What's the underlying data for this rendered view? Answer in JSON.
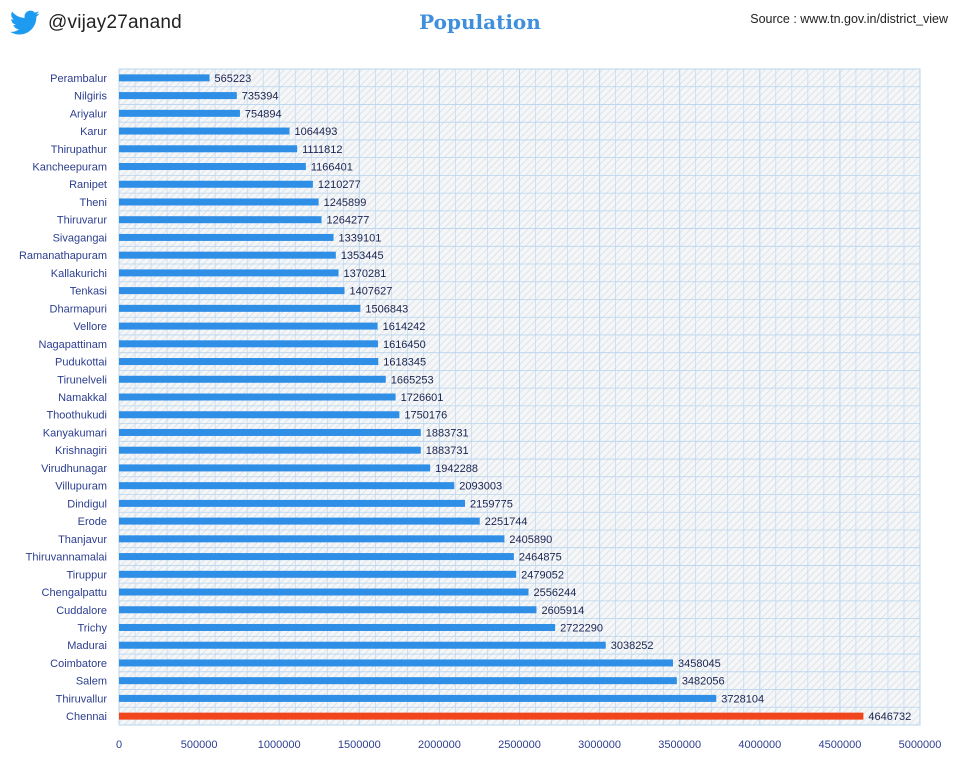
{
  "header": {
    "handle": "@vijay27anand",
    "title": "Population",
    "source": "Source : www.tn.gov.in/district_view"
  },
  "icons": {
    "brand": "twitter-bird-icon"
  },
  "colors": {
    "bar": "#2f8ee6",
    "highlight": "#f0451d",
    "title": "#3f8fdd",
    "grid": "#b9d4ee"
  },
  "chart_data": {
    "type": "bar",
    "orientation": "horizontal",
    "title": "Population",
    "xlabel": "",
    "ylabel": "",
    "xlim": [
      0,
      5000000
    ],
    "xticks": [
      0,
      500000,
      1000000,
      1500000,
      2000000,
      2500000,
      3000000,
      3500000,
      4000000,
      4500000,
      5000000
    ],
    "grid": true,
    "legend": "none",
    "highlight_category": "Chennai",
    "categories": [
      "Perambalur",
      "Nilgiris",
      "Ariyalur",
      "Karur",
      "Thirupathur",
      "Kancheepuram",
      "Ranipet",
      "Theni",
      "Thiruvarur",
      "Sivagangai",
      "Ramanathapuram",
      "Kallakurichi",
      "Tenkasi",
      "Dharmapuri",
      "Vellore",
      "Nagapattinam",
      "Pudukottai",
      "Tirunelveli",
      "Namakkal",
      "Thoothukudi",
      "Kanyakumari",
      "Krishnagiri",
      "Virudhunagar",
      "Villupuram",
      "Dindigul",
      "Erode",
      "Thanjavur",
      "Thiruvannamalai",
      "Tiruppur",
      "Chengalpattu",
      "Cuddalore",
      "Trichy",
      "Madurai",
      "Coimbatore",
      "Salem",
      "Thiruvallur",
      "Chennai"
    ],
    "values": [
      565223,
      735394,
      754894,
      1064493,
      1111812,
      1166401,
      1210277,
      1245899,
      1264277,
      1339101,
      1353445,
      1370281,
      1407627,
      1506843,
      1614242,
      1616450,
      1618345,
      1665253,
      1726601,
      1750176,
      1883731,
      1883731,
      1942288,
      2093003,
      2159775,
      2251744,
      2405890,
      2464875,
      2479052,
      2556244,
      2605914,
      2722290,
      3038252,
      3458045,
      3482056,
      3728104,
      4646732
    ]
  }
}
